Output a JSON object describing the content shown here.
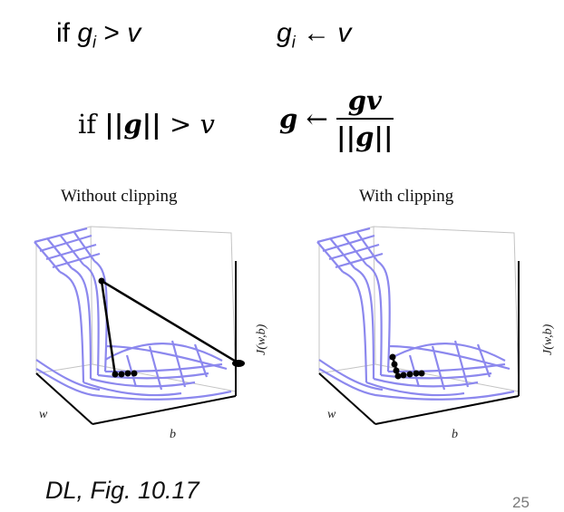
{
  "top_formula": {
    "cond_if": "if",
    "cond_var": "g",
    "cond_sub": "i",
    "cond_op": ">",
    "cond_rhs": "v",
    "assign_var": "g",
    "assign_sub": "i",
    "assign_arrow": "←",
    "assign_rhs": "v"
  },
  "norm_formula": {
    "cond_if": "if",
    "cond_norm": "||g||",
    "cond_op": ">",
    "cond_rhs": "v",
    "assign_lhs": "g",
    "assign_arrow": "←",
    "frac_num": "gv",
    "frac_den": "||g||"
  },
  "panels": [
    {
      "title": "Without clipping",
      "zlabel": "J(w,b)",
      "wlabel": "w",
      "blabel": "b"
    },
    {
      "title": "With clipping",
      "zlabel": "J(w,b)",
      "wlabel": "w",
      "blabel": "b"
    }
  ],
  "colors": {
    "surface": "#8c88ee",
    "trajectory": "#000000",
    "box": "#bdbdbd"
  },
  "caption": "DL, Fig. 10.17",
  "page_number": "25"
}
